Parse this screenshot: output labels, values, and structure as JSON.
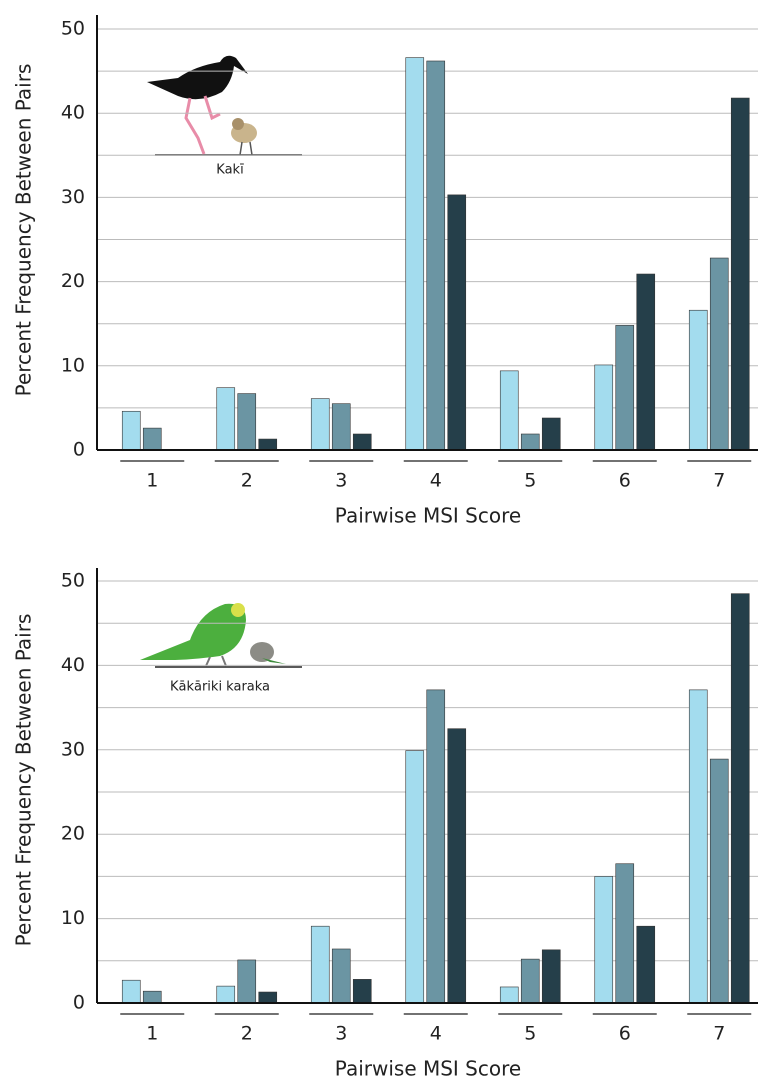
{
  "chart_data": [
    {
      "type": "bar",
      "annotation": "Kakī",
      "xlabel": "Pairwise MSI Score",
      "ylabel": "Percent Frequency Between Pairs",
      "categories": [
        "1",
        "2",
        "3",
        "4",
        "5",
        "6",
        "7"
      ],
      "series": [
        {
          "color": "#a3dcee",
          "values": [
            4.6,
            7.4,
            6.1,
            46.6,
            9.4,
            10.1,
            16.6
          ]
        },
        {
          "color": "#6b95a3",
          "values": [
            2.6,
            6.7,
            5.5,
            46.2,
            1.9,
            14.8,
            22.8
          ]
        },
        {
          "color": "#253f4a",
          "values": [
            0,
            1.3,
            1.9,
            30.3,
            3.8,
            20.9,
            41.8
          ]
        }
      ],
      "ylim": [
        0,
        50
      ],
      "yticks": [
        0,
        10,
        20,
        30,
        40,
        50
      ],
      "minor_yticks": [
        5,
        15,
        25,
        35,
        45
      ],
      "grid": true
    },
    {
      "type": "bar",
      "annotation": "Kākāriki karaka",
      "xlabel": "Pairwise MSI Score",
      "ylabel": "Percent Frequency Between Pairs",
      "categories": [
        "1",
        "2",
        "3",
        "4",
        "5",
        "6",
        "7"
      ],
      "series": [
        {
          "color": "#a3dcee",
          "values": [
            2.7,
            2.0,
            9.1,
            29.9,
            1.9,
            15.0,
            37.1
          ]
        },
        {
          "color": "#6b95a3",
          "values": [
            1.4,
            5.1,
            6.4,
            37.1,
            5.2,
            16.5,
            28.9
          ]
        },
        {
          "color": "#253f4a",
          "values": [
            0,
            1.3,
            2.8,
            32.5,
            6.3,
            9.1,
            48.5
          ]
        }
      ],
      "ylim": [
        0,
        50
      ],
      "yticks": [
        0,
        10,
        20,
        30,
        40,
        50
      ],
      "minor_yticks": [
        5,
        15,
        25,
        35,
        45
      ],
      "grid": true
    }
  ]
}
